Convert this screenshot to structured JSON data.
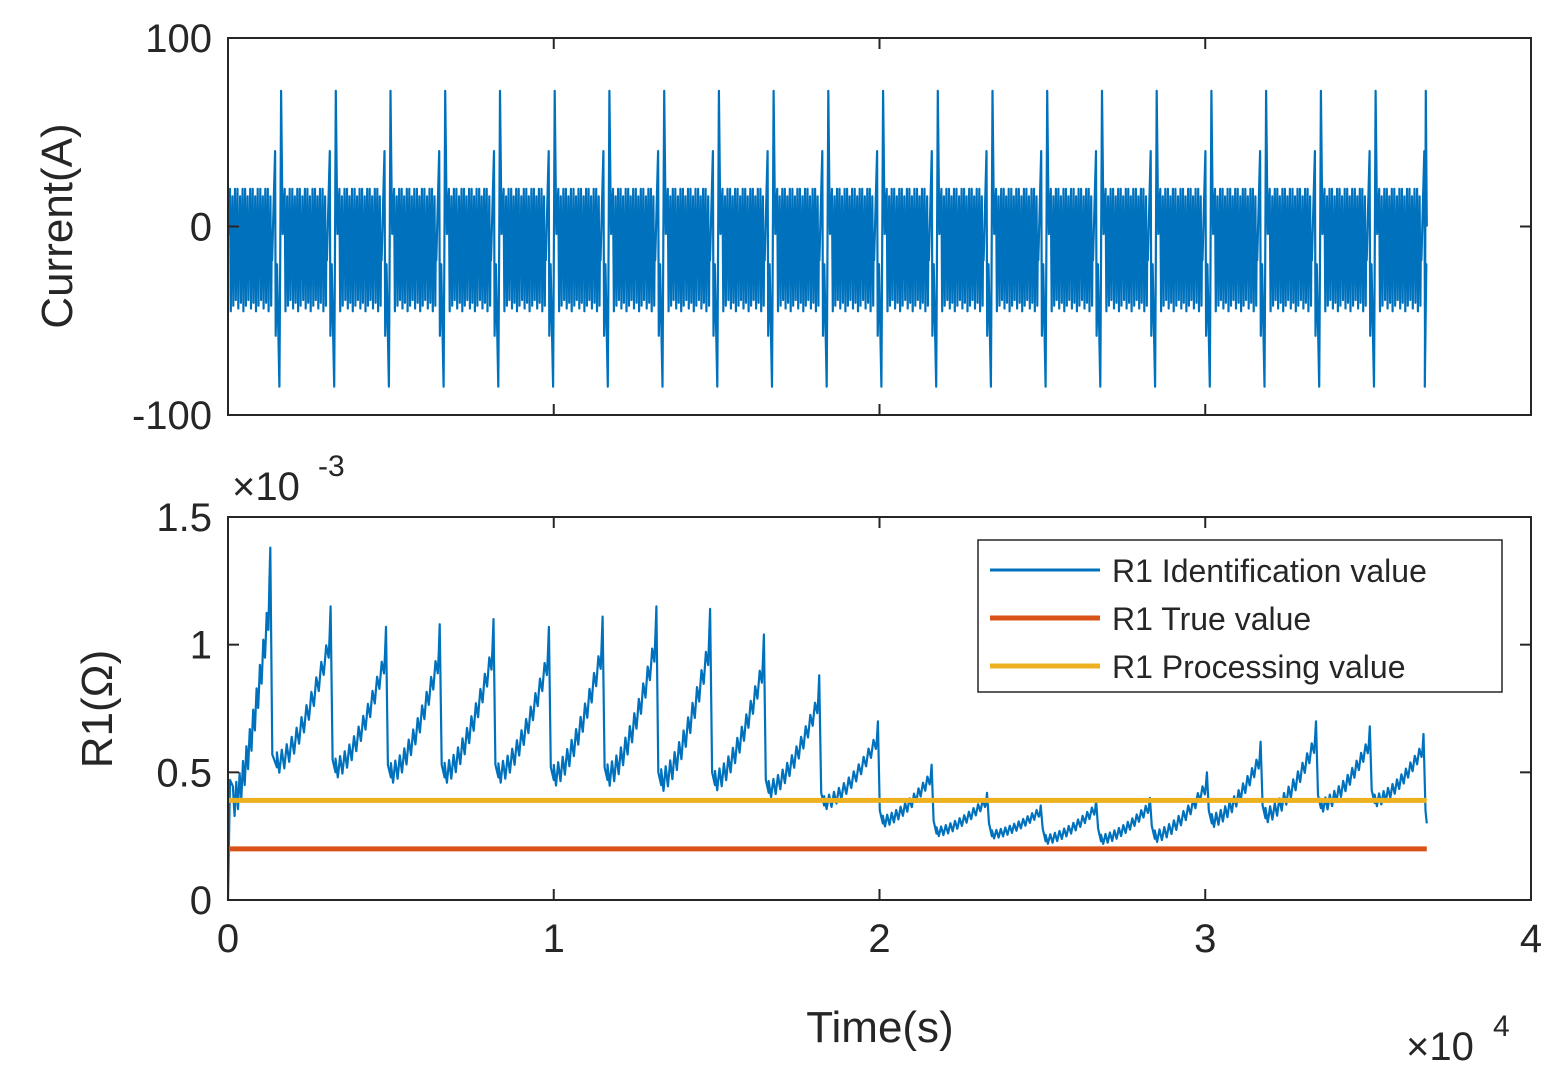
{
  "chart_data": [
    {
      "type": "line",
      "id": "current",
      "title": "",
      "xlabel": "",
      "ylabel": "Current(A)",
      "xlim": [
        0,
        40000
      ],
      "ylim": [
        -100,
        100
      ],
      "xticks": [
        0,
        10000,
        20000,
        30000,
        40000
      ],
      "yticks": [
        -100,
        0,
        100
      ],
      "ytick_labels": [
        "-100",
        "0",
        "100"
      ],
      "grid": false,
      "series": [
        {
          "name": "Current",
          "color": "#0072BD",
          "pattern": {
            "cycle_period_s": 1680,
            "cycle_count": 22,
            "end_time_s": 36800,
            "peak_positive_A": 72,
            "peak_negative_A": -85,
            "pre_peak_A": 40,
            "pre_trough_A": -58,
            "band_high_A": 20,
            "band_low_A": -42
          }
        }
      ]
    },
    {
      "type": "line",
      "id": "r1",
      "title": "",
      "xlabel": "Time(s)",
      "ylabel": "R1(Ω)",
      "xlim": [
        0,
        40000
      ],
      "ylim": [
        0,
        1.5
      ],
      "xticks": [
        0,
        10000,
        20000,
        30000,
        40000
      ],
      "xtick_labels": [
        "0",
        "1",
        "2",
        "3",
        "4"
      ],
      "yticks": [
        0,
        0.5,
        1,
        1.5
      ],
      "ytick_labels": [
        "0",
        "0.5",
        "1",
        "1.5"
      ],
      "y_multiplier": "×10",
      "y_exponent": "-3",
      "x_multiplier": "×10",
      "x_exponent": "4",
      "legend_position": "top-right",
      "grid": false,
      "series": [
        {
          "name": "R1 Identification value",
          "color": "#0072BD",
          "cycle_peaks": [
            [
              0,
              0.48
            ],
            [
              1300,
              1.38
            ],
            [
              3150,
              1.15
            ],
            [
              4850,
              1.07
            ],
            [
              6500,
              1.08
            ],
            [
              8150,
              1.1
            ],
            [
              9850,
              1.07
            ],
            [
              11500,
              1.11
            ],
            [
              13150,
              1.15
            ],
            [
              14800,
              1.14
            ],
            [
              16450,
              1.04
            ],
            [
              18150,
              0.88
            ],
            [
              19950,
              0.7
            ],
            [
              21600,
              0.53
            ],
            [
              23300,
              0.42
            ],
            [
              24950,
              0.37
            ],
            [
              26650,
              0.39
            ],
            [
              28300,
              0.4
            ],
            [
              30050,
              0.5
            ],
            [
              31700,
              0.62
            ],
            [
              33400,
              0.7
            ],
            [
              35050,
              0.68
            ],
            [
              36700,
              0.65
            ]
          ],
          "cycle_troughs": [
            [
              150,
              0.36
            ],
            [
              1500,
              0.52
            ],
            [
              3300,
              0.5
            ],
            [
              5000,
              0.48
            ],
            [
              6650,
              0.48
            ],
            [
              8300,
              0.48
            ],
            [
              10000,
              0.47
            ],
            [
              11650,
              0.47
            ],
            [
              13300,
              0.45
            ],
            [
              14950,
              0.45
            ],
            [
              16600,
              0.42
            ],
            [
              18300,
              0.37
            ],
            [
              20100,
              0.3
            ],
            [
              21750,
              0.26
            ],
            [
              23450,
              0.25
            ],
            [
              25100,
              0.23
            ],
            [
              26800,
              0.23
            ],
            [
              28450,
              0.24
            ],
            [
              30200,
              0.3
            ],
            [
              31850,
              0.32
            ],
            [
              33550,
              0.36
            ],
            [
              35200,
              0.38
            ],
            [
              36800,
              0.3
            ]
          ]
        },
        {
          "name": "R1 True value",
          "color": "#D95319",
          "value": 0.2,
          "x_end": 36800
        },
        {
          "name": "R1 Processing value",
          "color": "#EDB120",
          "value": 0.39,
          "x_end": 36800
        }
      ]
    }
  ]
}
